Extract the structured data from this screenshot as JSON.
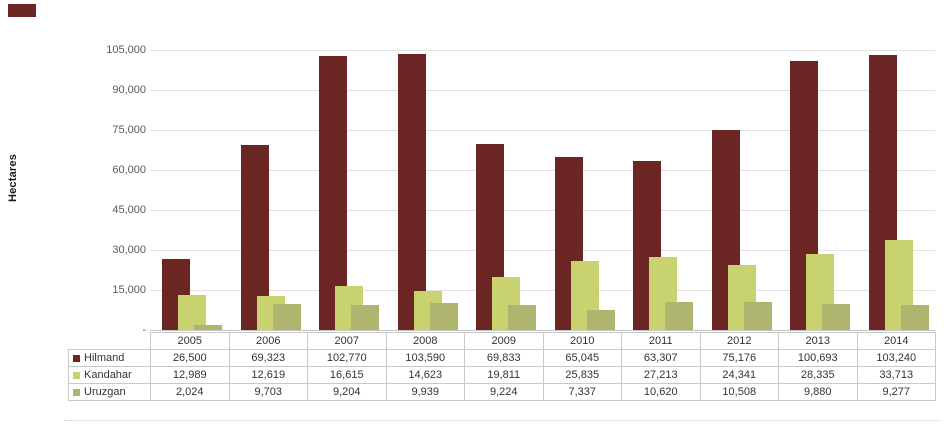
{
  "figure": {
    "y_axis_title": "Hectares",
    "y_ticks": [
      "105,000",
      "90,000",
      "75,000",
      "60,000",
      "45,000",
      "30,000",
      "15,000",
      "-"
    ]
  },
  "chart_data": {
    "type": "bar",
    "title": "",
    "xlabel": "",
    "ylabel": "Hectares",
    "ylim": [
      0,
      105000
    ],
    "grid": true,
    "legend_position": "table-left",
    "categories": [
      "2005",
      "2006",
      "2007",
      "2008",
      "2009",
      "2010",
      "2011",
      "2012",
      "2013",
      "2014"
    ],
    "series": [
      {
        "name": "Hilmand",
        "color": "#6B2523",
        "values": [
          26500,
          69323,
          102770,
          103590,
          69833,
          65045,
          63307,
          75176,
          100693,
          103240
        ]
      },
      {
        "name": "Kandahar",
        "color": "#C8D36F",
        "values": [
          12989,
          12619,
          16615,
          14623,
          19811,
          25835,
          27213,
          24341,
          28335,
          33713
        ]
      },
      {
        "name": "Uruzgan",
        "color": "#AFB56E",
        "values": [
          2024,
          9703,
          9204,
          9939,
          9224,
          7337,
          10620,
          10508,
          9880,
          9277
        ]
      }
    ]
  },
  "table": {
    "rows": [
      {
        "label": "Hilmand",
        "cells": [
          "26,500",
          "69,323",
          "102,770",
          "103,590",
          "69,833",
          "65,045",
          "63,307",
          "75,176",
          "100,693",
          "103,240"
        ]
      },
      {
        "label": "Kandahar",
        "cells": [
          "12,989",
          "12,619",
          "16,615",
          "14,623",
          "19,811",
          "25,835",
          "27,213",
          "24,341",
          "28,335",
          "33,713"
        ]
      },
      {
        "label": "Uruzgan",
        "cells": [
          "2,024",
          "9,703",
          "9,204",
          "9,939",
          "9,224",
          "7,337",
          "10,620",
          "10,508",
          "9,880",
          "9,277"
        ]
      }
    ]
  },
  "colors": {
    "hilmand": "#6B2523",
    "kandahar": "#C8D36F",
    "uruzgan": "#AFB56E",
    "gridline": "#e2e2e2",
    "axis_text": "#595959",
    "table_border": "#c9c9c9"
  }
}
